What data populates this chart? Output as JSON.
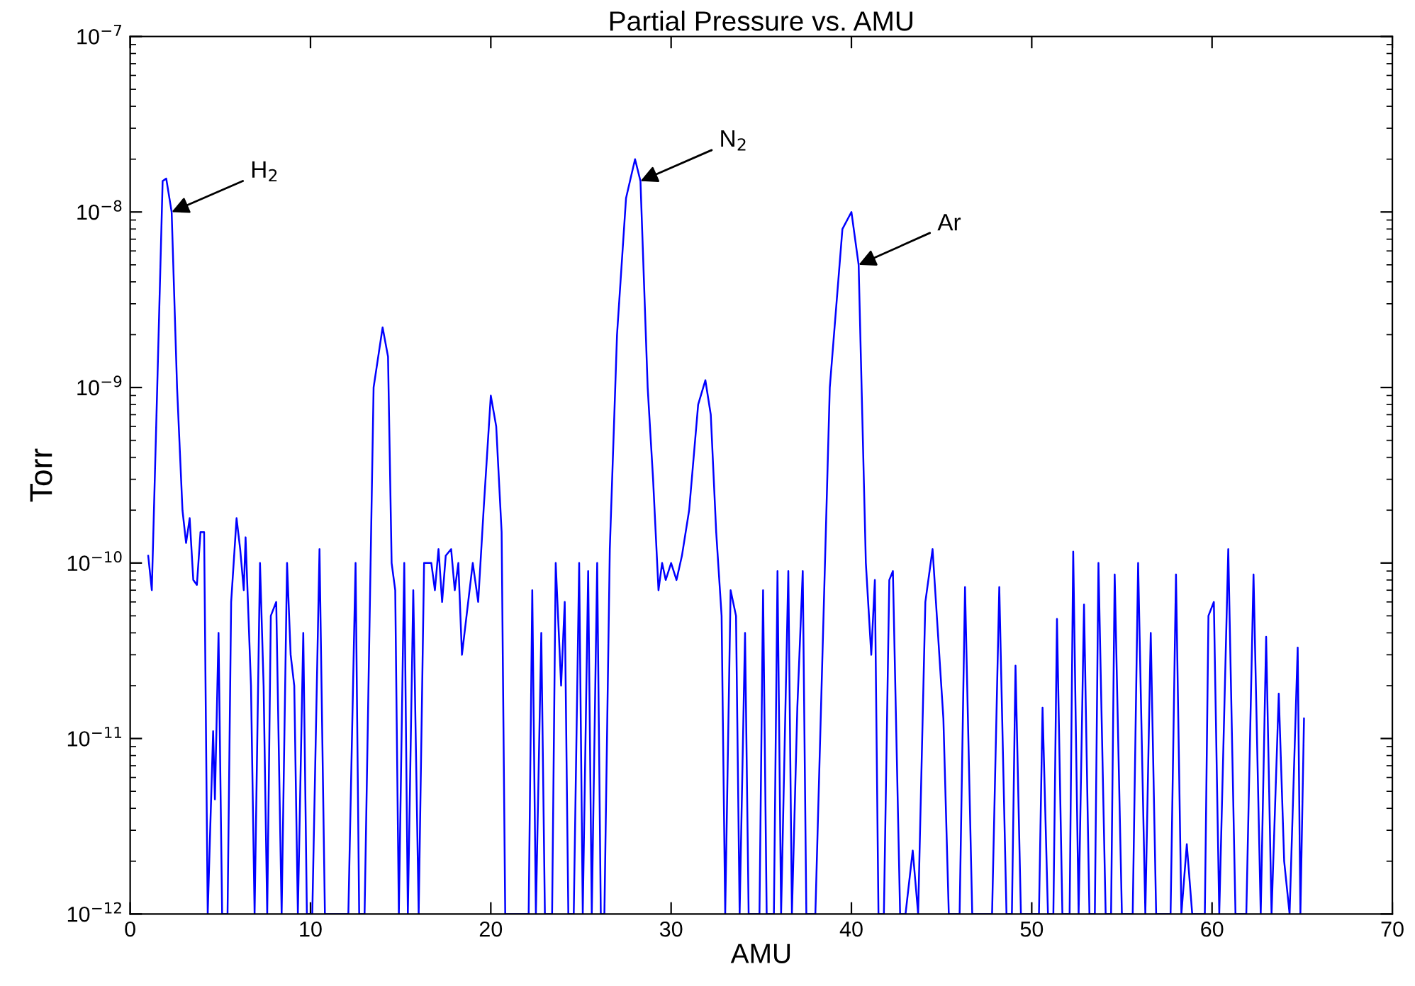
{
  "chart_data": {
    "type": "line",
    "title": "Partial Pressure vs. AMU",
    "xlabel": "AMU",
    "ylabel": "Torr",
    "log": "y",
    "grid": false,
    "marker": "none",
    "line_style": "solid",
    "xlim": [
      0,
      70
    ],
    "xticks": [
      0,
      10,
      20,
      30,
      40,
      50,
      60,
      70
    ],
    "ylim": [
      1e-12,
      1e-07
    ],
    "yticks": [
      {
        "value": 1e-12,
        "label": "10$^{−12}$"
      },
      {
        "value": 1e-11,
        "label": "10$^{−11}$"
      },
      {
        "value": 1e-10,
        "label": "10$^{−10}$"
      },
      {
        "value": 1e-09,
        "label": "10$^{−9}$"
      },
      {
        "value": 1e-08,
        "label": "10$^{−8}$"
      },
      {
        "value": 1e-07,
        "label": "10$^{−7}$"
      }
    ],
    "annotations": [
      {
        "text": "H$_{2}$",
        "x": 2.3,
        "y": 1e-08
      },
      {
        "text": "N$_{2}$",
        "x": 28.3,
        "y": 1.5e-08
      },
      {
        "text": "Ar",
        "x": 40.4,
        "y": 5e-09
      }
    ],
    "x": [
      1.0,
      1.2,
      1.5,
      1.8,
      2.0,
      2.3,
      2.6,
      2.9,
      3.1,
      3.3,
      3.5,
      3.7,
      3.9,
      4.1,
      4.3,
      4.6,
      4.7,
      4.9,
      5.1,
      5.4,
      5.6,
      5.9,
      6.1,
      6.3,
      6.4,
      6.7,
      6.9,
      7.2,
      7.4,
      7.6,
      7.8,
      8.1,
      8.4,
      8.7,
      8.9,
      9.1,
      9.3,
      9.6,
      9.8,
      10.1,
      10.5,
      10.8,
      12.1,
      12.5,
      12.7,
      13.0,
      13.5,
      14.0,
      14.3,
      14.5,
      14.7,
      14.9,
      15.2,
      15.4,
      15.7,
      16.0,
      16.3,
      16.5,
      16.7,
      16.9,
      17.1,
      17.3,
      17.5,
      17.8,
      18.0,
      18.2,
      18.4,
      19.0,
      19.3,
      19.6,
      20.0,
      20.3,
      20.6,
      20.8,
      22.1,
      22.3,
      22.5,
      22.8,
      23.0,
      23.4,
      23.6,
      23.9,
      24.1,
      24.3,
      24.6,
      24.9,
      25.1,
      25.4,
      25.6,
      25.9,
      26.1,
      26.3,
      26.6,
      27.0,
      27.5,
      28.0,
      28.3,
      28.7,
      29.0,
      29.3,
      29.5,
      29.7,
      30.0,
      30.3,
      30.6,
      31.0,
      31.5,
      31.9,
      32.2,
      32.5,
      32.8,
      33.0,
      33.3,
      33.6,
      33.8,
      34.1,
      34.3,
      34.9,
      35.1,
      35.3,
      35.7,
      35.9,
      36.1,
      36.5,
      36.7,
      37.0,
      37.3,
      37.5,
      38.0,
      38.8,
      39.5,
      40.0,
      40.4,
      40.8,
      41.1,
      41.3,
      41.5,
      41.8,
      42.1,
      42.3,
      42.7,
      43.0,
      43.4,
      43.7,
      44.1,
      44.5,
      45.1,
      45.4,
      46.0,
      46.3,
      46.7,
      47.8,
      48.2,
      48.6,
      48.9,
      49.1,
      49.4,
      50.4,
      50.6,
      50.9,
      51.2,
      51.4,
      51.7,
      52.1,
      52.3,
      52.6,
      52.9,
      53.2,
      53.5,
      53.7,
      54.1,
      54.4,
      54.6,
      55.0,
      55.6,
      55.9,
      56.3,
      56.6,
      56.9,
      57.7,
      58.0,
      58.3,
      58.6,
      58.9,
      59.6,
      59.8,
      60.1,
      60.4,
      60.9,
      61.3,
      61.9,
      62.3,
      62.7,
      63.0,
      63.3,
      63.7,
      64.0,
      64.3,
      64.75,
      64.9,
      65.1
    ],
    "series": [
      {
        "color": "#0000ff",
        "values": [
          1.1e-10,
          7e-11,
          1e-09,
          1.5e-08,
          1.55e-08,
          1e-08,
          1e-09,
          2e-10,
          1.3e-10,
          1.8e-10,
          8e-11,
          7.5e-11,
          1.5e-10,
          1.5e-10,
          1e-12,
          1.1e-11,
          4.5e-12,
          4e-11,
          1e-12,
          1e-12,
          6e-11,
          1.8e-10,
          1.2e-10,
          7e-11,
          1.4e-10,
          2e-11,
          1e-12,
          1e-10,
          2e-11,
          1e-12,
          5e-11,
          6e-11,
          1e-12,
          1e-10,
          3e-11,
          2e-11,
          1e-12,
          4e-11,
          1e-12,
          1e-12,
          1.2e-10,
          1e-12,
          1e-12,
          1e-10,
          1e-12,
          1e-12,
          1e-09,
          2.2e-09,
          1.5e-09,
          1e-10,
          7e-11,
          1e-12,
          1e-10,
          1e-12,
          7e-11,
          1e-12,
          1e-10,
          1e-10,
          1e-10,
          7e-11,
          1.2e-10,
          6e-11,
          1.1e-10,
          1.2e-10,
          7e-11,
          1e-10,
          3e-11,
          1e-10,
          6e-11,
          2e-10,
          9e-10,
          6e-10,
          1.5e-10,
          1e-12,
          1e-12,
          7e-11,
          1e-12,
          4e-11,
          1e-12,
          1e-12,
          1e-10,
          2e-11,
          6e-11,
          1e-12,
          1e-12,
          1e-10,
          1e-12,
          9e-11,
          1e-12,
          1e-10,
          1e-12,
          1e-12,
          1.2e-10,
          2e-09,
          1.2e-08,
          2e-08,
          1.5e-08,
          1e-09,
          3e-10,
          7e-11,
          1e-10,
          8e-11,
          1e-10,
          8e-11,
          1.1e-10,
          2e-10,
          8e-10,
          1.1e-09,
          7e-10,
          1.5e-10,
          5e-11,
          1e-12,
          7e-11,
          5e-11,
          1e-12,
          4e-11,
          1e-12,
          1e-12,
          7e-11,
          1e-12,
          1e-12,
          9e-11,
          1e-12,
          9e-11,
          1e-12,
          1.5e-11,
          9e-11,
          1e-12,
          1e-12,
          1e-09,
          8e-09,
          1e-08,
          5e-09,
          1e-10,
          3e-11,
          8e-11,
          1e-12,
          1e-12,
          8e-11,
          9e-11,
          1e-12,
          1e-12,
          2.3e-12,
          1e-12,
          6e-11,
          1.2e-10,
          1.3e-11,
          1e-12,
          1e-12,
          7.3e-11,
          1e-12,
          1e-12,
          7.3e-11,
          1e-12,
          1e-12,
          2.6e-11,
          1e-12,
          1e-12,
          1.5e-11,
          1e-12,
          1e-12,
          4.8e-11,
          1e-12,
          1e-12,
          1.16e-10,
          1e-12,
          5.8e-11,
          1e-12,
          1e-12,
          1e-10,
          1e-12,
          1e-12,
          8.6e-11,
          1e-12,
          1e-12,
          1e-10,
          1e-12,
          4e-11,
          1e-12,
          1e-12,
          8.6e-11,
          1e-12,
          2.5e-12,
          1e-12,
          1e-12,
          5e-11,
          6e-11,
          1e-12,
          1.2e-10,
          1e-12,
          1e-12,
          8.6e-11,
          1e-12,
          3.8e-11,
          1e-12,
          1.8e-11,
          2e-12,
          1e-12,
          3.3e-11,
          1e-12,
          1.3e-11
        ]
      }
    ]
  }
}
